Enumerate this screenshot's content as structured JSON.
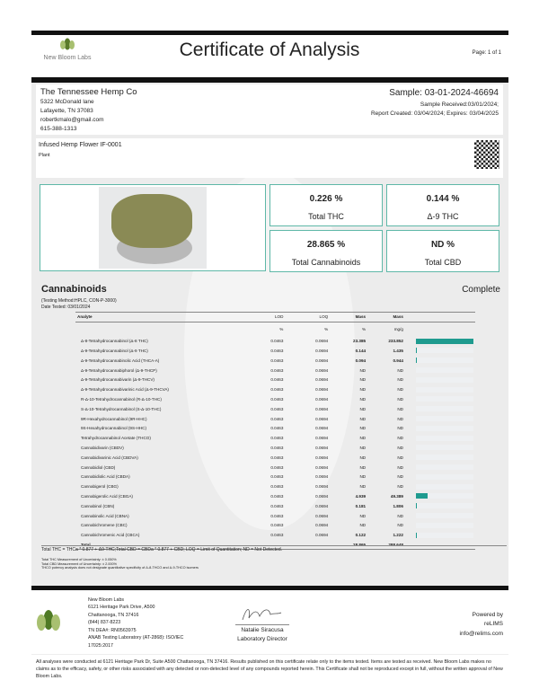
{
  "header": {
    "lab_name": "New Bloom Labs",
    "title": "Certificate of Analysis",
    "page": "Page: 1 of 1"
  },
  "client": {
    "name": "The Tennessee Hemp Co",
    "address1": "5322 McDonald lane",
    "address2": "Lafayette, TN 37083",
    "email": "robertkmalo@gmail.com",
    "phone": "615-388-1313"
  },
  "sample": {
    "id": "Sample: 03-01-2024-46694",
    "received": "Sample Received:03/01/2024;",
    "dates": "Report Created: 03/04/2024; Expires: 03/04/2025"
  },
  "product": {
    "name": "Infused Hemp Flower IF-0001",
    "type": "Plant"
  },
  "summary": [
    {
      "value": "0.226 %",
      "label": "Total THC"
    },
    {
      "value": "0.144 %",
      "label": "Δ-9 THC"
    },
    {
      "value": "28.865 %",
      "label": "Total Cannabinoids"
    },
    {
      "value": "ND %",
      "label": "Total CBD"
    }
  ],
  "cannabinoids": {
    "title": "Cannabinoids",
    "status": "Complete",
    "method": "(Testing Method:HPLC, CON-P-3000)",
    "date": "Date Tested: 03/01/2024",
    "columns": [
      "Analyte",
      "LOD",
      "LOQ",
      "Mass",
      "Mass"
    ],
    "units": [
      "",
      "%",
      "%",
      "%",
      "mg/g"
    ],
    "accent": "#1f9b8f",
    "rows": [
      {
        "name": "Δ-8-Tetrahydrocannabinol (Δ-8 THC)",
        "lod": "0.0463",
        "loq": "0.0694",
        "pct": "23.385",
        "mg": "233.852"
      },
      {
        "name": "Δ-9-Tetrahydrocannabinol (Δ-9 THC)",
        "lod": "0.0463",
        "loq": "0.0694",
        "pct": "0.144",
        "mg": "1.435"
      },
      {
        "name": "Δ-9-Tetrahydrocannabinolic Acid (THCA-A)",
        "lod": "0.0463",
        "loq": "0.0694",
        "pct": "0.094",
        "mg": "0.944"
      },
      {
        "name": "Δ-9-Tetrahydrocannabiphorol (Δ-9-THCP)",
        "lod": "0.0463",
        "loq": "0.0694",
        "pct": "ND",
        "mg": "ND"
      },
      {
        "name": "Δ-9-Tetrahydrocannabivarin (Δ-9-THCV)",
        "lod": "0.0463",
        "loq": "0.0694",
        "pct": "ND",
        "mg": "ND"
      },
      {
        "name": "Δ-9-Tetrahydrocannabivarinic Acid (Δ-9-THCVA)",
        "lod": "0.0463",
        "loq": "0.0694",
        "pct": "ND",
        "mg": "ND"
      },
      {
        "name": "R-Δ-10-Tetrahydrocannabinol (R-Δ-10-THC)",
        "lod": "0.0463",
        "loq": "0.0694",
        "pct": "ND",
        "mg": "ND"
      },
      {
        "name": "S-Δ-10-Tetrahydrocannabinol (S-Δ-10-THC)",
        "lod": "0.0463",
        "loq": "0.0694",
        "pct": "ND",
        "mg": "ND"
      },
      {
        "name": "9R-Hexahydrocannabinol (9R-HHC)",
        "lod": "0.0463",
        "loq": "0.0694",
        "pct": "ND",
        "mg": "ND"
      },
      {
        "name": "9S-Hexahydrocannabinol (9S-HHC)",
        "lod": "0.0463",
        "loq": "0.0694",
        "pct": "ND",
        "mg": "ND"
      },
      {
        "name": "Tetrahydrocannabinol Acetate (THCO)",
        "lod": "0.0463",
        "loq": "0.0694",
        "pct": "ND",
        "mg": "ND"
      },
      {
        "name": "Cannabidivarin (CBDV)",
        "lod": "0.0463",
        "loq": "0.0694",
        "pct": "ND",
        "mg": "ND"
      },
      {
        "name": "Cannabidivarinic Acid (CBDVA)",
        "lod": "0.0463",
        "loq": "0.0694",
        "pct": "ND",
        "mg": "ND"
      },
      {
        "name": "Cannabidiol (CBD)",
        "lod": "0.0463",
        "loq": "0.0694",
        "pct": "ND",
        "mg": "ND"
      },
      {
        "name": "Cannabidiolic Acid (CBDA)",
        "lod": "0.0463",
        "loq": "0.0694",
        "pct": "ND",
        "mg": "ND"
      },
      {
        "name": "Cannabigerol (CBG)",
        "lod": "0.0463",
        "loq": "0.0694",
        "pct": "ND",
        "mg": "ND"
      },
      {
        "name": "Cannabigerolic Acid (CBGA)",
        "lod": "0.0463",
        "loq": "0.0694",
        "pct": "4.939",
        "mg": "49.389"
      },
      {
        "name": "Cannabinol (CBN)",
        "lod": "0.0463",
        "loq": "0.0694",
        "pct": "0.181",
        "mg": "1.806"
      },
      {
        "name": "Cannabinolic Acid (CBNA)",
        "lod": "0.0463",
        "loq": "0.0694",
        "pct": "ND",
        "mg": "ND"
      },
      {
        "name": "Cannabichromene (CBC)",
        "lod": "0.0463",
        "loq": "0.0694",
        "pct": "ND",
        "mg": "ND"
      },
      {
        "name": "Cannabichromenic Acid (CBCA)",
        "lod": "0.0463",
        "loq": "0.0694",
        "pct": "0.122",
        "mg": "1.222"
      }
    ],
    "total": {
      "label": "Total",
      "pct": "28.865",
      "mg": "288.648"
    },
    "notes": [
      "Total THC = THCa * 0.877 + Δ9-THC;Total CBD = CBDa * 0.877 + CBD; LOQ = Limit of Quantitation; ND = Not Detected.",
      "Total THC Measurement of Uncertainty: ± 0.050%",
      "Total CBD Measurement of Uncertainty: ± 2.000%",
      "THCO potency analysis does not designate quantitative specificity of Δ-8-THCO and Δ-9-THCO isomers"
    ]
  },
  "footer": {
    "lab_lines": [
      "New Bloom Labs",
      "6121 Heritage Park Drive, A500",
      "Chattanooga, TN 37416",
      "(844) 837-8223",
      "TN DEA#: RN0563975",
      "ANAB Testing Laboratory (AT-2868): ISO/IEC",
      "17025:2017"
    ],
    "signer": "Natalie Siracusa",
    "signer_title": "Laboratory Director",
    "powered": "Powered by",
    "powered_name": "reLIMS",
    "powered_email": "info@relims.com",
    "disclaimer": "All analyses were conducted at 6121 Heritage Park Dr, Suite A500 Chattanooga, TN 37416. Results published on this certificate relate only to the items tested. Items are tested as received. New Bloom Labs makes no claims as to the efficacy, safety, or other risks associated with any detected or non-detected level of any compounds reported herein. This Certificate shall not be reproduced except in full, without the written approval of New Bloom Labs."
  }
}
